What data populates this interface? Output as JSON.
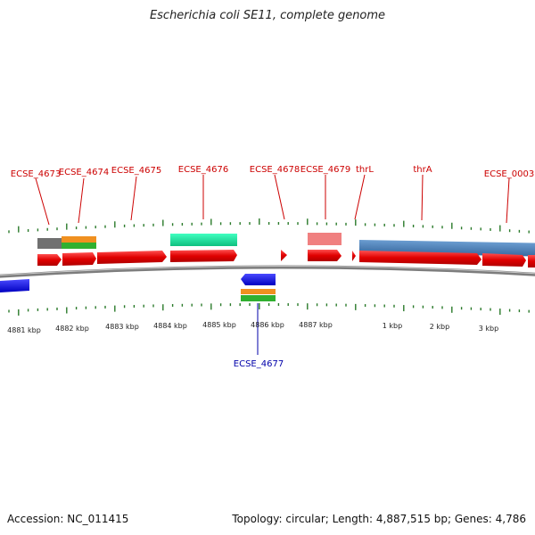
{
  "title": "Escherichia coli SE11, complete genome",
  "footer": {
    "accession": "Accession: NC_011415",
    "topology": "Topology: circular; Length: 4,887,515 bp; Genes: 4,786"
  },
  "colors": {
    "cds": "#ee0000",
    "cds_reverse": "#1010e0",
    "backbone": "#888888",
    "tick": "#2a7a2a",
    "label_fwd": "#cc0000",
    "label_rev": "#0000aa",
    "orange": "#f09020",
    "green": "#30b030",
    "gray": "#707070",
    "teal": "#20e0a0",
    "pink": "#f08080",
    "steel": "#4a80b8"
  },
  "scale_labels": [
    "4881 kbp",
    "4882 kbp",
    "4883 kbp",
    "4884 kbp",
    "4885 kbp",
    "4886 kbp",
    "4887 kbp",
    "1 kbp",
    "2 kbp",
    "3 kbp"
  ],
  "gene_labels": [
    {
      "id": "ECSE_4673",
      "strand": "+"
    },
    {
      "id": "ECSE_4674",
      "strand": "+"
    },
    {
      "id": "ECSE_4675",
      "strand": "+"
    },
    {
      "id": "ECSE_4676",
      "strand": "+"
    },
    {
      "id": "ECSE_4678",
      "strand": "+"
    },
    {
      "id": "ECSE_4679",
      "strand": "+"
    },
    {
      "id": "thrL",
      "strand": "+"
    },
    {
      "id": "thrA",
      "strand": "+"
    },
    {
      "id": "ECSE_0003",
      "strand": "+"
    },
    {
      "id": "ECSE_4677",
      "strand": "-"
    }
  ]
}
